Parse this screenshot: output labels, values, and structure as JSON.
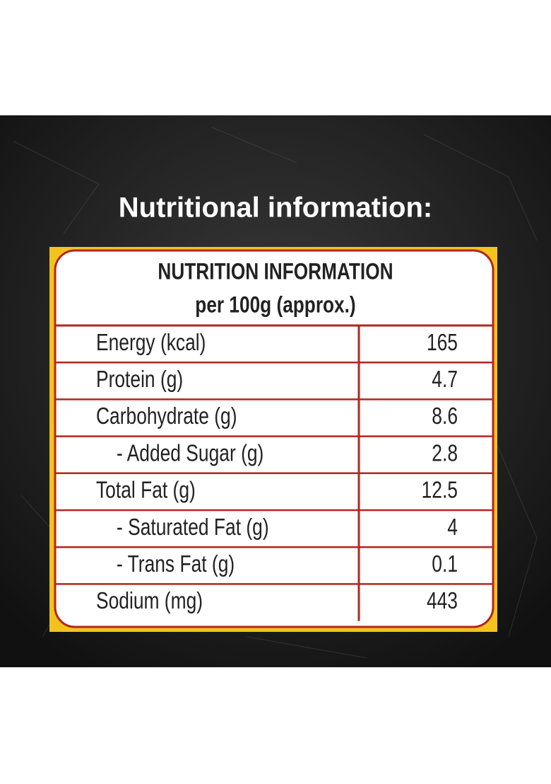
{
  "header": {
    "title": "Nutritional information:"
  },
  "table": {
    "title": "NUTRITION INFORMATION",
    "subtitle": "per 100g (approx.)",
    "rows": [
      [
        "Energy (kcal)",
        "165"
      ],
      [
        "Protein (g)",
        "4.7"
      ],
      [
        "Carbohydrate (g)",
        "8.6"
      ],
      [
        "- Added Sugar (g)",
        "2.8"
      ],
      [
        "Total Fat (g)",
        "12.5"
      ],
      [
        "- Saturated Fat (g)",
        "4"
      ],
      [
        "- Trans Fat (g)",
        "0.1"
      ],
      [
        "Sodium (mg)",
        "443"
      ]
    ]
  }
}
